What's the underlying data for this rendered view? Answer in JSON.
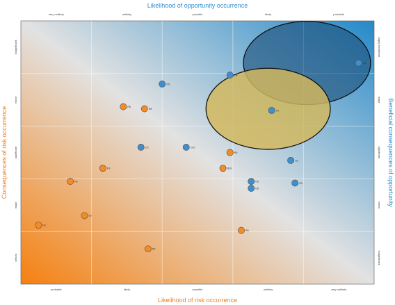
{
  "chart_data": {
    "type": "scatter",
    "titles": {
      "top": "Likelihood of opportunity occurrence",
      "bottom": "Likelihood of risk occurrence",
      "left": "Consequences of risk occurrence",
      "right": "Beneficial consequences of opportunity"
    },
    "top_ticks": [
      "very unlikely",
      "unlikely",
      "possible",
      "likely",
      "probable"
    ],
    "bottom_ticks": [
      "probable",
      "likely",
      "possible",
      "unlikely",
      "very unlikely"
    ],
    "left_ticks": [
      "insignificant",
      "minor",
      "significant",
      "major",
      "critical"
    ],
    "right_ticks": [
      "highly beneficial",
      "major",
      "significant",
      "minor",
      "insignificant"
    ],
    "xlim": [
      0,
      5
    ],
    "ylim": [
      0,
      5
    ],
    "grid": true,
    "colors": {
      "risk": "#f28c28",
      "opportunity": "#3d8fd1",
      "gradient_risk": "#f5800f",
      "gradient_mid": "#e2e2e2",
      "gradient_opportunity": "#2489c9",
      "ellipse_dark": "#1d4f78",
      "ellipse_gold": "#d4b85a",
      "title_risk": "#e8822a",
      "title_opportunity": "#2f8fd0"
    },
    "series": [
      {
        "kind": "risk",
        "points": [
          {
            "label": "R1",
            "x": 0.25,
            "y": 1.12
          },
          {
            "label": "R2",
            "x": 0.7,
            "y": 1.95
          },
          {
            "label": "R3",
            "x": 1.16,
            "y": 2.2
          },
          {
            "label": "R4",
            "x": 1.8,
            "y": 0.67
          },
          {
            "label": "R5",
            "x": 3.12,
            "y": 1.02
          },
          {
            "label": "R6",
            "x": 1.45,
            "y": 3.37
          },
          {
            "label": "R7",
            "x": 0.9,
            "y": 1.3
          },
          {
            "label": "R8",
            "x": 1.75,
            "y": 3.33
          },
          {
            "label": "R9",
            "x": 2.96,
            "y": 2.5
          },
          {
            "label": "R10",
            "x": 2.86,
            "y": 2.2
          }
        ]
      },
      {
        "kind": "opportunity",
        "points": [
          {
            "label": "O1",
            "x": 4.78,
            "y": 4.2
          },
          {
            "label": "O2",
            "x": 3.82,
            "y": 2.35
          },
          {
            "label": "O3",
            "x": 1.7,
            "y": 2.6
          },
          {
            "label": "O4",
            "x": 2.96,
            "y": 3.97
          },
          {
            "label": "O5",
            "x": 2.0,
            "y": 3.8
          },
          {
            "label": "O6",
            "x": 3.26,
            "y": 1.95
          },
          {
            "label": "O7",
            "x": 3.55,
            "y": 3.3
          },
          {
            "label": "O8",
            "x": 3.26,
            "y": 1.82
          },
          {
            "label": "O9",
            "x": 3.88,
            "y": 1.92
          },
          {
            "label": "O10",
            "x": 2.34,
            "y": 2.6
          }
        ]
      }
    ],
    "ellipses": [
      {
        "name": "dark",
        "cx": 4.05,
        "cy": 4.2,
        "rx": 0.9,
        "ry": 0.79
      },
      {
        "name": "gold",
        "cx": 3.5,
        "cy": 3.33,
        "rx": 0.88,
        "ry": 0.77
      }
    ]
  }
}
